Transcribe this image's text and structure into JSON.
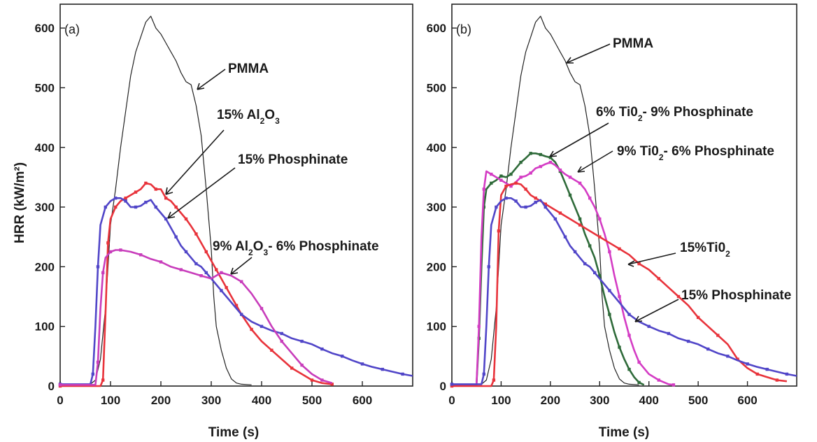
{
  "y_axis_label": "HRR (kW/m²)",
  "x_axis_label": "Time (s)",
  "chart_data": [
    {
      "type": "line",
      "panel": "(a)",
      "xlabel": "Time (s)",
      "ylabel": "HRR (kW/m²)",
      "xlim": [
        0,
        700
      ],
      "ylim": [
        0,
        640
      ],
      "xticks": [
        0,
        100,
        200,
        300,
        400,
        500,
        600
      ],
      "yticks": [
        0,
        100,
        200,
        300,
        400,
        500,
        600
      ],
      "series": [
        {
          "name": "PMMA",
          "color": "#222222",
          "x": [
            0,
            60,
            70,
            80,
            90,
            100,
            110,
            120,
            130,
            140,
            150,
            160,
            170,
            180,
            190,
            200,
            210,
            220,
            230,
            240,
            250,
            260,
            270,
            280,
            290,
            300,
            305,
            310,
            320,
            330,
            340,
            350,
            360,
            380
          ],
          "y": [
            3,
            3,
            10,
            45,
            130,
            270,
            330,
            400,
            460,
            520,
            560,
            585,
            610,
            620,
            600,
            590,
            575,
            560,
            545,
            525,
            510,
            505,
            470,
            420,
            330,
            230,
            150,
            100,
            60,
            30,
            12,
            5,
            3,
            2
          ]
        },
        {
          "name": "15% Al₂O₃",
          "color": "#e8333b",
          "x": [
            0,
            80,
            85,
            90,
            95,
            100,
            110,
            120,
            130,
            140,
            150,
            160,
            170,
            180,
            190,
            200,
            210,
            220,
            230,
            240,
            250,
            260,
            270,
            280,
            290,
            300,
            310,
            320,
            330,
            340,
            350,
            360,
            380,
            400,
            420,
            440,
            460,
            480,
            500,
            520,
            540
          ],
          "y": [
            0,
            0,
            10,
            120,
            240,
            280,
            300,
            310,
            315,
            320,
            325,
            330,
            340,
            338,
            330,
            330,
            315,
            310,
            300,
            290,
            280,
            268,
            255,
            240,
            225,
            210,
            195,
            180,
            165,
            150,
            135,
            120,
            95,
            75,
            60,
            45,
            30,
            20,
            10,
            5,
            3
          ]
        },
        {
          "name": "15% Phosphinate",
          "color": "#5146c8",
          "x": [
            0,
            60,
            65,
            70,
            75,
            80,
            90,
            100,
            110,
            120,
            130,
            140,
            150,
            160,
            170,
            180,
            190,
            200,
            210,
            220,
            230,
            240,
            250,
            260,
            270,
            280,
            290,
            300,
            320,
            340,
            360,
            380,
            400,
            420,
            440,
            460,
            480,
            500,
            520,
            540,
            560,
            580,
            600,
            620,
            640,
            660,
            680,
            700
          ],
          "y": [
            3,
            3,
            20,
            100,
            200,
            270,
            300,
            310,
            315,
            315,
            310,
            300,
            300,
            302,
            308,
            312,
            300,
            290,
            280,
            265,
            250,
            235,
            225,
            215,
            205,
            200,
            190,
            180,
            160,
            140,
            120,
            108,
            100,
            93,
            88,
            80,
            75,
            70,
            62,
            55,
            50,
            43,
            37,
            32,
            28,
            24,
            20,
            17
          ]
        },
        {
          "name": "9% Al₂O₃- 6% Phosphinate",
          "color": "#c83dbb",
          "x": [
            0,
            70,
            75,
            80,
            85,
            90,
            100,
            110,
            120,
            140,
            160,
            180,
            200,
            220,
            240,
            260,
            280,
            300,
            320,
            340,
            360,
            380,
            400,
            420,
            440,
            460,
            480,
            500,
            520,
            540
          ],
          "y": [
            2,
            2,
            40,
            130,
            190,
            215,
            225,
            228,
            228,
            225,
            220,
            213,
            208,
            200,
            195,
            190,
            185,
            180,
            190,
            185,
            175,
            155,
            130,
            100,
            75,
            55,
            35,
            20,
            10,
            5
          ]
        }
      ]
    },
    {
      "type": "line",
      "panel": "(b)",
      "xlabel": "Time (s)",
      "ylabel": "HRR (kW/m²)",
      "xlim": [
        0,
        700
      ],
      "ylim": [
        0,
        640
      ],
      "xticks": [
        0,
        100,
        200,
        300,
        400,
        500,
        600
      ],
      "yticks": [
        0,
        100,
        200,
        300,
        400,
        500,
        600
      ],
      "series": [
        {
          "name": "PMMA",
          "color": "#222222",
          "x": [
            0,
            60,
            70,
            80,
            90,
            100,
            110,
            120,
            130,
            140,
            150,
            160,
            170,
            180,
            190,
            200,
            210,
            220,
            230,
            240,
            250,
            260,
            270,
            280,
            290,
            300,
            305,
            310,
            320,
            330,
            340,
            350,
            360,
            380
          ],
          "y": [
            3,
            3,
            10,
            45,
            130,
            270,
            330,
            400,
            460,
            520,
            560,
            585,
            610,
            620,
            600,
            590,
            575,
            560,
            545,
            525,
            510,
            505,
            470,
            420,
            330,
            230,
            150,
            100,
            60,
            30,
            12,
            5,
            3,
            2
          ]
        },
        {
          "name": "6% Ti0₂- 9% Phosphinate",
          "color": "#2f6b3a",
          "x": [
            0,
            50,
            55,
            60,
            65,
            70,
            80,
            90,
            100,
            110,
            120,
            130,
            140,
            150,
            160,
            170,
            180,
            190,
            200,
            210,
            220,
            230,
            240,
            250,
            260,
            270,
            280,
            290,
            300,
            310,
            320,
            330,
            340,
            350,
            360,
            370,
            380,
            390
          ],
          "y": [
            2,
            2,
            80,
            200,
            300,
            330,
            340,
            345,
            352,
            350,
            355,
            365,
            375,
            382,
            390,
            390,
            388,
            385,
            383,
            375,
            360,
            340,
            320,
            300,
            280,
            255,
            235,
            215,
            185,
            150,
            120,
            90,
            65,
            45,
            28,
            15,
            6,
            2
          ]
        },
        {
          "name": "9% Ti0₂- 6% Phosphinate",
          "color": "#d43cc4",
          "x": [
            0,
            50,
            55,
            60,
            65,
            70,
            80,
            90,
            100,
            110,
            120,
            130,
            140,
            150,
            160,
            170,
            180,
            190,
            200,
            210,
            220,
            230,
            240,
            250,
            260,
            270,
            280,
            290,
            300,
            310,
            320,
            330,
            340,
            350,
            360,
            370,
            380,
            400,
            420,
            440,
            450
          ],
          "y": [
            2,
            2,
            100,
            250,
            330,
            360,
            355,
            350,
            345,
            340,
            335,
            342,
            350,
            352,
            357,
            365,
            368,
            372,
            375,
            370,
            362,
            355,
            350,
            345,
            340,
            330,
            315,
            300,
            280,
            255,
            225,
            185,
            150,
            115,
            85,
            60,
            40,
            20,
            10,
            3,
            2
          ]
        },
        {
          "name": "15%Ti0₂",
          "color": "#e8333b",
          "x": [
            0,
            80,
            85,
            90,
            95,
            100,
            110,
            120,
            130,
            140,
            150,
            160,
            170,
            180,
            190,
            200,
            220,
            240,
            260,
            280,
            300,
            320,
            340,
            360,
            380,
            400,
            420,
            440,
            460,
            480,
            500,
            520,
            540,
            560,
            580,
            600,
            620,
            640,
            660,
            680
          ],
          "y": [
            0,
            0,
            10,
            100,
            260,
            320,
            335,
            338,
            340,
            338,
            330,
            320,
            315,
            310,
            305,
            300,
            290,
            280,
            270,
            260,
            250,
            240,
            230,
            220,
            205,
            195,
            180,
            165,
            150,
            135,
            115,
            100,
            85,
            70,
            45,
            30,
            20,
            15,
            10,
            8
          ]
        },
        {
          "name": "15% Phosphinate",
          "color": "#5146c8",
          "x": [
            0,
            60,
            65,
            70,
            75,
            80,
            90,
            100,
            110,
            120,
            130,
            140,
            150,
            160,
            170,
            180,
            190,
            200,
            210,
            220,
            230,
            240,
            250,
            260,
            270,
            280,
            290,
            300,
            320,
            340,
            360,
            380,
            400,
            420,
            440,
            460,
            480,
            500,
            520,
            540,
            560,
            580,
            600,
            620,
            640,
            660,
            680,
            700
          ],
          "y": [
            3,
            3,
            20,
            100,
            200,
            270,
            300,
            310,
            315,
            315,
            310,
            300,
            300,
            302,
            308,
            312,
            300,
            290,
            280,
            265,
            250,
            235,
            225,
            215,
            205,
            200,
            190,
            180,
            160,
            140,
            120,
            108,
            100,
            93,
            88,
            80,
            75,
            70,
            62,
            55,
            50,
            43,
            37,
            32,
            28,
            24,
            20,
            17
          ]
        }
      ]
    }
  ],
  "annotations": {
    "a": [
      {
        "text": "PMMA",
        "sub": false
      },
      {
        "text_parts": [
          "15% Al",
          "2",
          "O",
          "3"
        ]
      },
      {
        "text": "15% Phosphinate"
      },
      {
        "text_parts": [
          "9% Al",
          "2",
          "O",
          "3",
          "- 6% Phosphinate"
        ]
      }
    ],
    "b": [
      {
        "text": "PMMA"
      },
      {
        "text_parts": [
          "6% Ti0",
          "2",
          "- 9% Phosphinate"
        ]
      },
      {
        "text_parts": [
          "9% Ti0",
          "2",
          "- 6% Phosphinate"
        ]
      },
      {
        "text_parts": [
          "15%Ti0",
          "2"
        ]
      },
      {
        "text": "15% Phosphinate"
      }
    ]
  }
}
